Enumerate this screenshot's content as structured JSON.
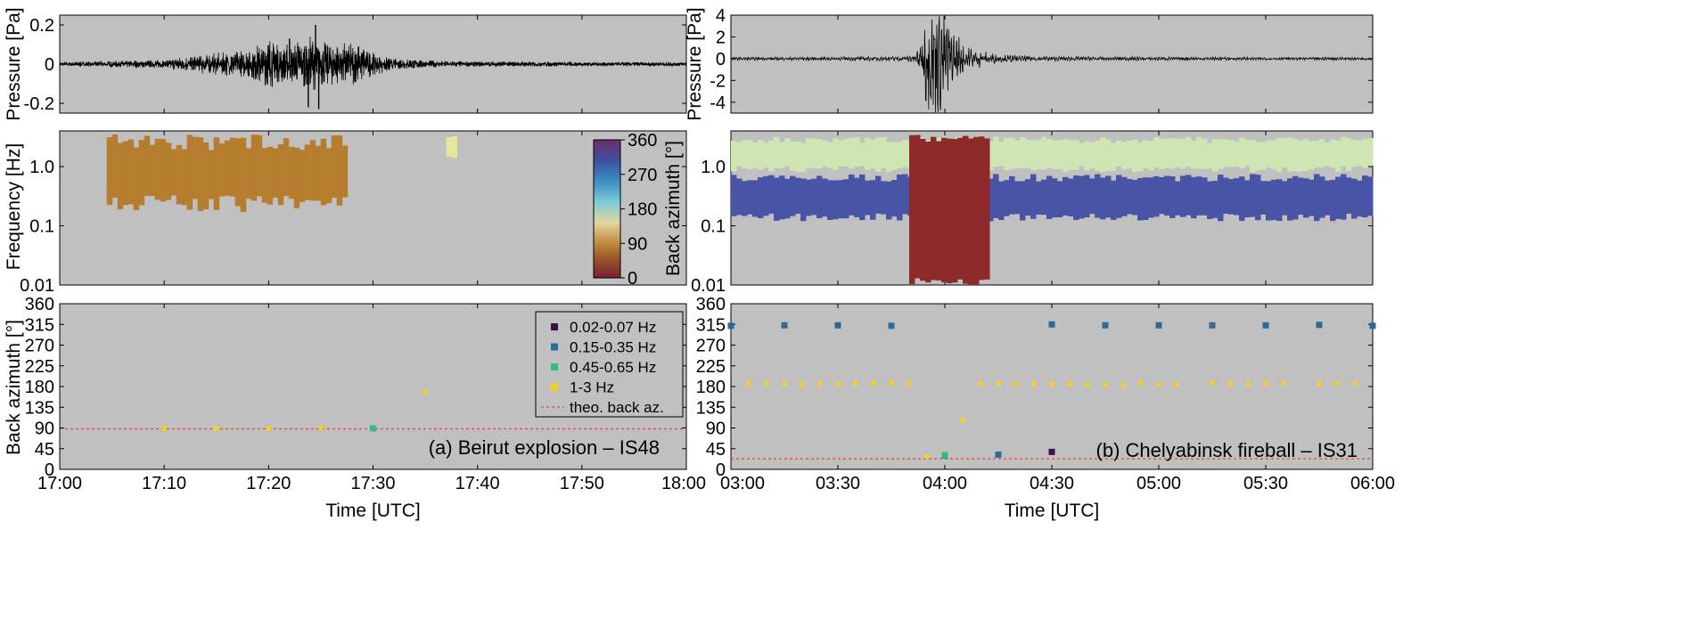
{
  "colors": {
    "panel_bg": "#c0c0c0",
    "frame": "#000000",
    "waveform": "#000000",
    "theo_line": "#e8433c",
    "band_002_007": "#3b0f4f",
    "band_015_035": "#2d6a97",
    "band_045_065": "#2ebf7c",
    "band_1_3": "#f5d31b",
    "beirut_spectrogram": "#b57d2d",
    "beirut_late_blob": "#e6e59b",
    "chel_high_band": "#cfe5b4",
    "chel_mid_band": "#4854a6",
    "chel_signal": "#8c2a2a"
  },
  "panels": {
    "left": {
      "annotation": "(a) Beirut explosion – IS48",
      "xlabel": "Time [UTC]",
      "xticks": [
        "17:00",
        "17:10",
        "17:20",
        "17:30",
        "17:40",
        "17:50",
        "18:00"
      ]
    },
    "right": {
      "annotation": "(b) Chelyabinsk fireball – IS31",
      "xlabel": "Time [UTC]",
      "xticks": [
        "03:00",
        "03:30",
        "04:00",
        "04:30",
        "05:00",
        "05:30",
        "06:00"
      ]
    }
  },
  "ylabels": {
    "pressure": "Pressure [Pa]",
    "frequency": "Frequency [Hz]",
    "back_azimuth": "Back azimuth [°]"
  },
  "yticks": {
    "left_pressure": [
      "0.2",
      "0",
      "-0.2"
    ],
    "right_pressure": [
      "4",
      "2",
      "0",
      "-2",
      "-4"
    ],
    "frequency": [
      "1.0",
      "0.1",
      "0.01"
    ],
    "back_azimuth": [
      "360",
      "315",
      "270",
      "225",
      "180",
      "135",
      "90",
      "45",
      "0"
    ],
    "colorbar": [
      "360",
      "270",
      "180",
      "90",
      "0"
    ]
  },
  "colorbar_label": "Back azimuth [°]",
  "legend": [
    {
      "label": "0.02-0.07 Hz",
      "color": "#3b0f4f",
      "kind": "square"
    },
    {
      "label": "0.15-0.35 Hz",
      "color": "#2d6a97",
      "kind": "square"
    },
    {
      "label": "0.45-0.65 Hz",
      "color": "#2ebf7c",
      "kind": "square"
    },
    {
      "label": "1-3 Hz",
      "color": "#f5d31b",
      "kind": "square"
    },
    {
      "label": "theo. back az.",
      "color": "#e8433c",
      "kind": "dashed"
    }
  ],
  "chart_data": [
    {
      "type": "line",
      "panel": "Beirut pressure waveform",
      "xlim": [
        "17:00",
        "18:00"
      ],
      "ylim": [
        -0.25,
        0.25
      ],
      "ylabel": "Pressure [Pa]",
      "envelope": {
        "x_min": [
          0,
          10,
          14,
          18,
          20,
          22,
          24,
          26,
          28,
          30,
          32,
          36,
          40,
          45,
          50,
          55,
          60
        ],
        "amplitude_pa": [
          0.008,
          0.015,
          0.035,
          0.05,
          0.09,
          0.07,
          0.1,
          0.08,
          0.08,
          0.04,
          0.02,
          0.012,
          0.01,
          0.009,
          0.008,
          0.008,
          0.008
        ]
      },
      "peaks": [
        {
          "x_min": 22,
          "value": 0.13
        },
        {
          "x_min": 24.5,
          "value": 0.2
        },
        {
          "x_min": 24.8,
          "value": -0.23
        },
        {
          "x_min": 23.8,
          "value": -0.22
        }
      ]
    },
    {
      "type": "line",
      "panel": "Chelyabinsk pressure waveform",
      "xlim": [
        "03:00",
        "06:00"
      ],
      "ylim": [
        -5,
        4
      ],
      "ylabel": "Pressure [Pa]",
      "envelope": {
        "x_min": [
          0,
          30,
          45,
          52,
          55,
          58,
          61,
          66,
          75,
          90,
          120,
          150,
          180
        ],
        "amplitude_pa": [
          0.1,
          0.12,
          0.15,
          0.3,
          3.5,
          4.0,
          2.5,
          0.8,
          0.25,
          0.15,
          0.12,
          0.1,
          0.1
        ]
      }
    },
    {
      "type": "heatmap",
      "panel": "Beirut back-azimuth spectrogram",
      "xlim": [
        "17:00",
        "18:00"
      ],
      "ylim_hz": [
        0.01,
        4
      ],
      "yscale": "log",
      "colorbar": {
        "label": "Back azimuth [°]",
        "range": [
          0,
          360
        ]
      },
      "regions": [
        {
          "x_range_min": [
            4.5,
            27.5
          ],
          "f_hz": [
            0.17,
            3.5
          ],
          "back_azimuth": 88
        },
        {
          "x_range_min": [
            37,
            38
          ],
          "f_hz": [
            1.4,
            3.4
          ],
          "back_azimuth": 170
        }
      ]
    },
    {
      "type": "heatmap",
      "panel": "Chelyabinsk back-azimuth spectrogram",
      "xlim": [
        "03:00",
        "06:00"
      ],
      "ylim_hz": [
        0.01,
        4
      ],
      "yscale": "log",
      "regions": [
        {
          "x_range_min": [
            0,
            180
          ],
          "f_hz": [
            0.8,
            3.2
          ],
          "back_azimuth": 186
        },
        {
          "x_range_min": [
            0,
            180
          ],
          "f_hz": [
            0.12,
            0.75
          ],
          "back_azimuth": 312
        },
        {
          "x_range_min": [
            50,
            72
          ],
          "f_hz": [
            0.01,
            3.5
          ],
          "back_azimuth": 25
        }
      ]
    },
    {
      "type": "scatter",
      "panel": "Beirut back azimuth vs time",
      "xlim": [
        "17:00",
        "18:00"
      ],
      "ylim": [
        0,
        360
      ],
      "ylabel": "Back azimuth [°]",
      "theoretical_back_azimuth": 88,
      "series": [
        {
          "name": "1-3 Hz",
          "points": [
            [
              "17:10",
              89
            ],
            [
              "17:15",
              89
            ],
            [
              "17:20",
              89
            ],
            [
              "17:25",
              90
            ],
            [
              "17:35",
              168
            ]
          ]
        },
        {
          "name": "0.45-0.65 Hz",
          "points": [
            [
              "17:30",
              89
            ]
          ]
        }
      ]
    },
    {
      "type": "scatter",
      "panel": "Chelyabinsk back azimuth vs time",
      "xlim": [
        "03:00",
        "06:00"
      ],
      "ylim": [
        0,
        360
      ],
      "ylabel": "Back azimuth [°]",
      "theoretical_back_azimuth": 23,
      "series": [
        {
          "name": "0.15-0.35 Hz",
          "points": [
            [
              "03:00",
              312
            ],
            [
              "03:15",
              313
            ],
            [
              "03:30",
              313
            ],
            [
              "03:45",
              312
            ],
            [
              "04:00",
              30
            ],
            [
              "04:15",
              32
            ],
            [
              "04:30",
              315
            ],
            [
              "04:45",
              313
            ],
            [
              "05:00",
              313
            ],
            [
              "05:15",
              313
            ],
            [
              "05:30",
              313
            ],
            [
              "05:45",
              314
            ],
            [
              "06:00",
              312
            ]
          ]
        },
        {
          "name": "1-3 Hz",
          "points": [
            [
              "03:05",
              186
            ],
            [
              "03:10",
              186
            ],
            [
              "03:15",
              186
            ],
            [
              "03:20",
              185
            ],
            [
              "03:25",
              186
            ],
            [
              "03:30",
              186
            ],
            [
              "03:35",
              186
            ],
            [
              "03:40",
              187
            ],
            [
              "03:45",
              187
            ],
            [
              "03:50",
              186
            ],
            [
              "03:55",
              28
            ],
            [
              "04:05",
              106
            ],
            [
              "04:10",
              186
            ],
            [
              "04:15",
              186
            ],
            [
              "04:20",
              186
            ],
            [
              "04:25",
              186
            ],
            [
              "04:30",
              186
            ],
            [
              "04:35",
              185
            ],
            [
              "04:40",
              185
            ],
            [
              "04:45",
              184
            ],
            [
              "04:50",
              184
            ],
            [
              "04:55",
              187
            ],
            [
              "05:00",
              185
            ],
            [
              "05:05",
              185
            ],
            [
              "05:15",
              187
            ],
            [
              "05:20",
              186
            ],
            [
              "05:25",
              186
            ],
            [
              "05:30",
              186
            ],
            [
              "05:35",
              186
            ],
            [
              "05:45",
              186
            ],
            [
              "05:50",
              187
            ],
            [
              "05:55",
              186
            ]
          ]
        },
        {
          "name": "0.45-0.65 Hz",
          "points": [
            [
              "04:00",
              31
            ]
          ]
        },
        {
          "name": "0.02-0.07 Hz",
          "points": [
            [
              "04:30",
              38
            ]
          ]
        }
      ]
    }
  ]
}
